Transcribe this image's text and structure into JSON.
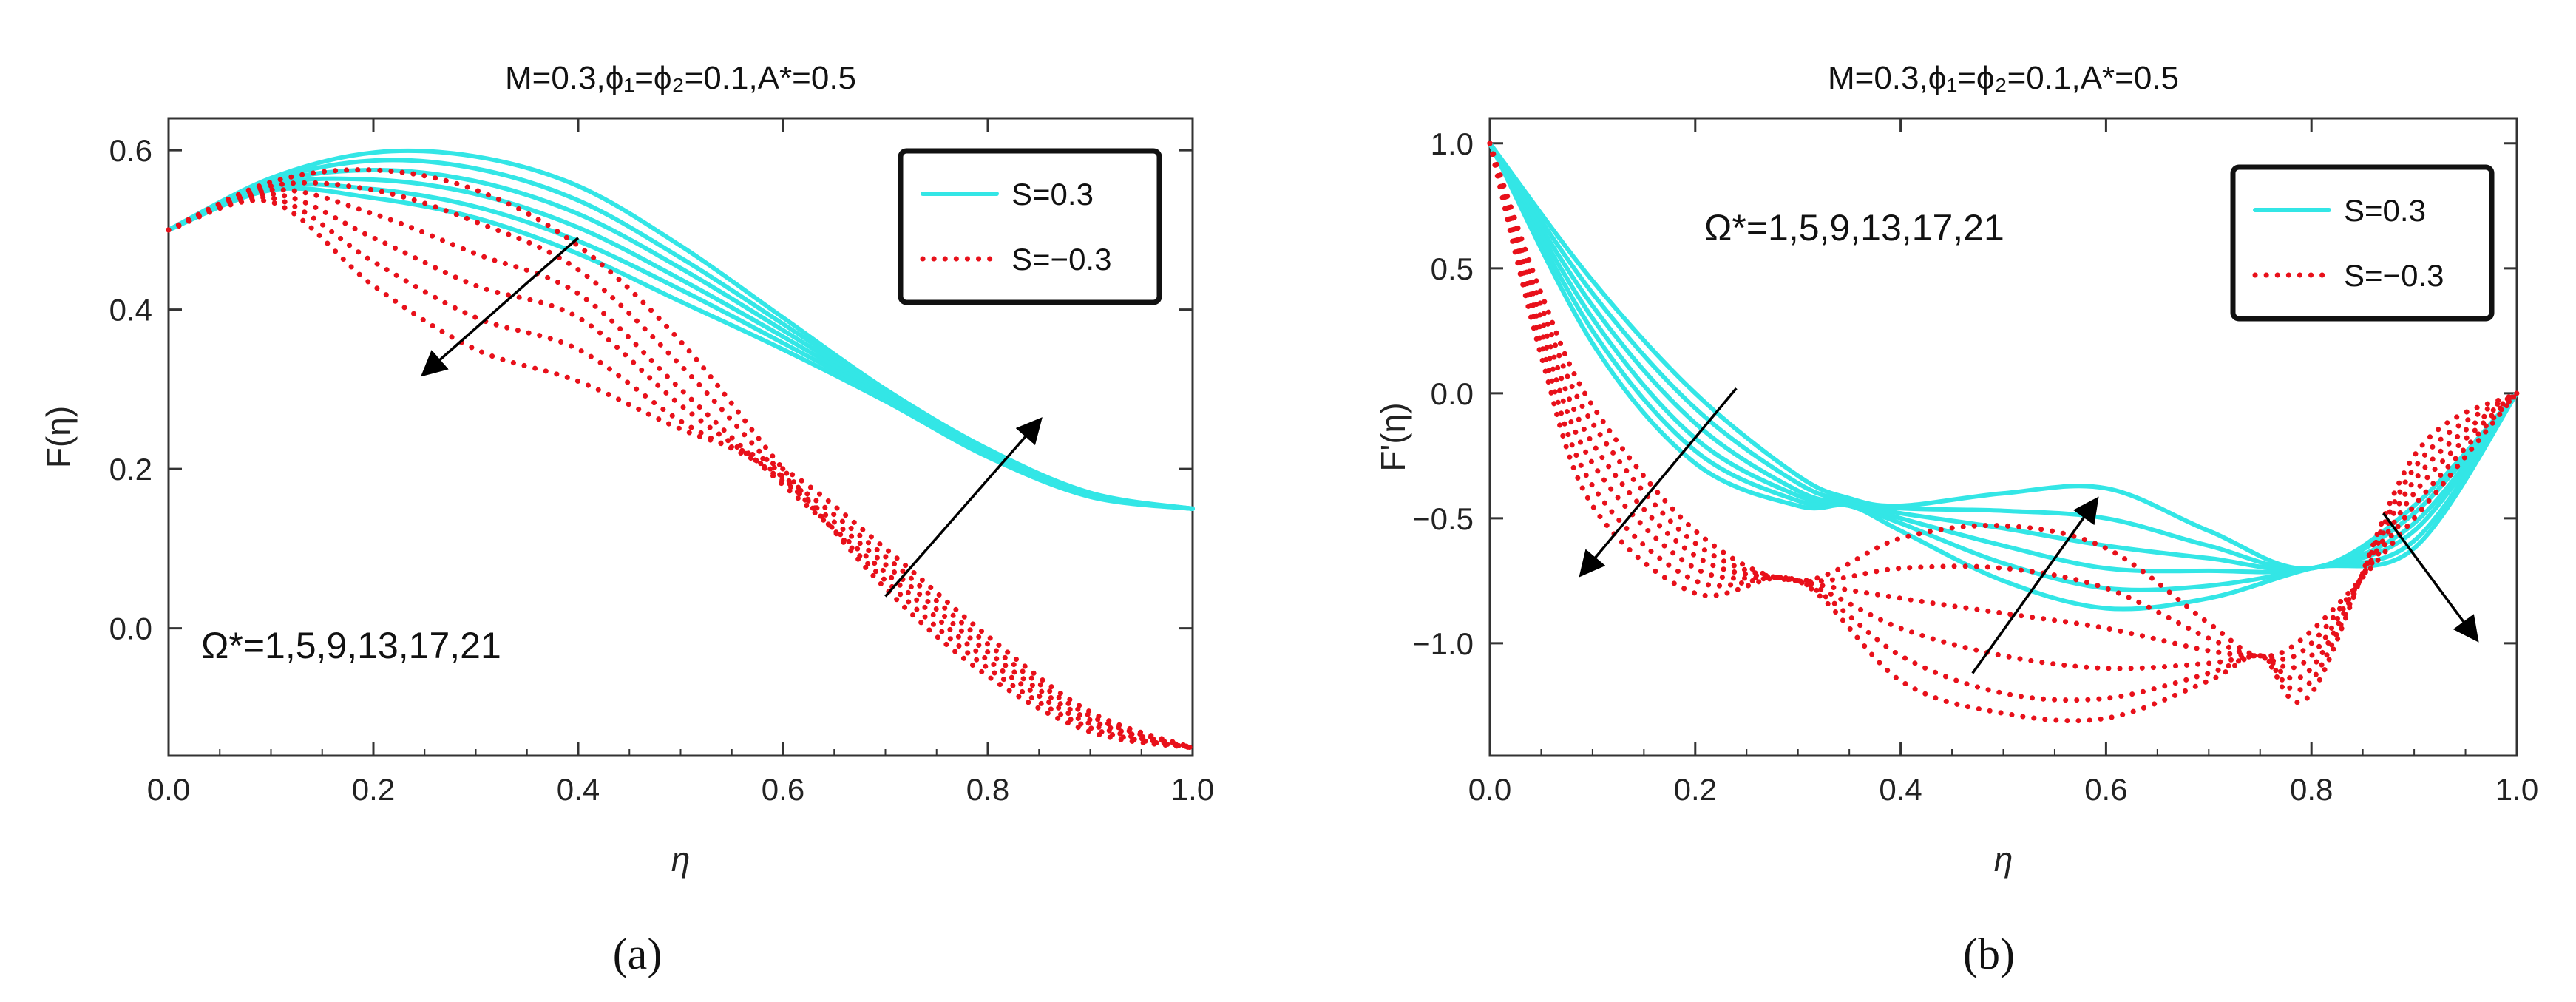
{
  "colors": {
    "series_pos": "#33E6E6",
    "series_neg": "#E8101A",
    "frame": "#333333",
    "arrow": "#000000"
  },
  "chart_data": [
    {
      "type": "line",
      "panel_label": "(a)",
      "title": "M=0.3,ϕ₁=ϕ₂=0.1,A*=0.5",
      "xlabel": "η",
      "ylabel": "F(η)",
      "xlim": [
        0,
        1
      ],
      "ylim": [
        -0.16,
        0.64
      ],
      "xticks": [
        "0.0",
        "0.2",
        "0.4",
        "0.6",
        "0.8",
        "1.0"
      ],
      "yticks": [
        "0.0",
        "0.2",
        "0.4",
        "0.6"
      ],
      "ytick_values": [
        0,
        0.2,
        0.4,
        0.6
      ],
      "legend": {
        "position": "top-right",
        "entries": [
          "S=0.3",
          "S=−0.3"
        ]
      },
      "annotation": "Ω*=1,5,9,13,17,21",
      "arrows": [
        {
          "from": [
            0.4,
            0.49
          ],
          "to": [
            0.25,
            0.32
          ]
        },
        {
          "from": [
            0.7,
            0.04
          ],
          "to": [
            0.85,
            0.26
          ]
        }
      ],
      "series_groups": [
        {
          "name": "S=0.3",
          "style": "solid",
          "color_key": "series_pos",
          "curves": [
            {
              "x": [
                0,
                0.1,
                0.2,
                0.3,
                0.4,
                0.5,
                0.6,
                0.7,
                0.8,
                0.9,
                1.0
              ],
              "y": [
                0.5,
                0.565,
                0.597,
                0.592,
                0.555,
                0.48,
                0.39,
                0.3,
                0.225,
                0.17,
                0.15
              ]
            },
            {
              "x": [
                0,
                0.1,
                0.2,
                0.3,
                0.4,
                0.5,
                0.6,
                0.7,
                0.8,
                0.9,
                1.0
              ],
              "y": [
                0.5,
                0.562,
                0.587,
                0.577,
                0.537,
                0.465,
                0.382,
                0.298,
                0.223,
                0.169,
                0.15
              ]
            },
            {
              "x": [
                0,
                0.1,
                0.2,
                0.3,
                0.4,
                0.5,
                0.6,
                0.7,
                0.8,
                0.9,
                1.0
              ],
              "y": [
                0.5,
                0.559,
                0.575,
                0.561,
                0.52,
                0.452,
                0.374,
                0.295,
                0.221,
                0.168,
                0.15
              ]
            },
            {
              "x": [
                0,
                0.1,
                0.2,
                0.3,
                0.4,
                0.5,
                0.6,
                0.7,
                0.8,
                0.9,
                1.0
              ],
              "y": [
                0.5,
                0.556,
                0.563,
                0.545,
                0.503,
                0.438,
                0.366,
                0.292,
                0.219,
                0.167,
                0.15
              ]
            },
            {
              "x": [
                0,
                0.1,
                0.2,
                0.3,
                0.4,
                0.5,
                0.6,
                0.7,
                0.8,
                0.9,
                1.0
              ],
              "y": [
                0.5,
                0.553,
                0.551,
                0.529,
                0.486,
                0.425,
                0.358,
                0.289,
                0.217,
                0.166,
                0.15
              ]
            },
            {
              "x": [
                0,
                0.1,
                0.2,
                0.3,
                0.4,
                0.5,
                0.6,
                0.7,
                0.8,
                0.9,
                1.0
              ],
              "y": [
                0.5,
                0.55,
                0.54,
                0.515,
                0.47,
                0.41,
                0.35,
                0.285,
                0.215,
                0.165,
                0.15
              ]
            }
          ]
        },
        {
          "name": "S=−0.3",
          "style": "dotted",
          "color_key": "series_neg",
          "curves": [
            {
              "x": [
                0,
                0.1,
                0.2,
                0.3,
                0.4,
                0.5,
                0.6,
                0.7,
                0.8,
                0.9,
                1.0
              ],
              "y": [
                0.5,
                0.56,
                0.575,
                0.55,
                0.48,
                0.36,
                0.2,
                0.05,
                -0.06,
                -0.13,
                -0.15
              ]
            },
            {
              "x": [
                0,
                0.1,
                0.2,
                0.3,
                0.4,
                0.5,
                0.6,
                0.7,
                0.8,
                0.9,
                1.0
              ],
              "y": [
                0.5,
                0.555,
                0.55,
                0.51,
                0.45,
                0.33,
                0.19,
                0.06,
                -0.05,
                -0.125,
                -0.15
              ]
            },
            {
              "x": [
                0,
                0.1,
                0.2,
                0.3,
                0.4,
                0.5,
                0.6,
                0.7,
                0.8,
                0.9,
                1.0
              ],
              "y": [
                0.5,
                0.55,
                0.52,
                0.47,
                0.42,
                0.3,
                0.18,
                0.07,
                -0.04,
                -0.12,
                -0.15
              ]
            },
            {
              "x": [
                0,
                0.1,
                0.2,
                0.3,
                0.4,
                0.5,
                0.6,
                0.7,
                0.8,
                0.9,
                1.0
              ],
              "y": [
                0.5,
                0.545,
                0.49,
                0.43,
                0.39,
                0.28,
                0.185,
                0.08,
                -0.03,
                -0.115,
                -0.15
              ]
            },
            {
              "x": [
                0,
                0.1,
                0.2,
                0.3,
                0.4,
                0.5,
                0.6,
                0.7,
                0.8,
                0.9,
                1.0
              ],
              "y": [
                0.5,
                0.54,
                0.46,
                0.39,
                0.35,
                0.26,
                0.19,
                0.09,
                -0.02,
                -0.11,
                -0.15
              ]
            },
            {
              "x": [
                0,
                0.1,
                0.2,
                0.3,
                0.4,
                0.5,
                0.6,
                0.7,
                0.8,
                0.9,
                1.0
              ],
              "y": [
                0.5,
                0.535,
                0.43,
                0.35,
                0.31,
                0.25,
                0.2,
                0.1,
                -0.01,
                -0.105,
                -0.15
              ]
            }
          ]
        }
      ]
    },
    {
      "type": "line",
      "panel_label": "(b)",
      "title": "M=0.3,ϕ₁=ϕ₂=0.1,A*=0.5",
      "xlabel": "η",
      "ylabel": "F'(η)",
      "xlim": [
        0,
        1
      ],
      "ylim": [
        -1.45,
        1.1
      ],
      "xticks": [
        "0.0",
        "0.2",
        "0.4",
        "0.6",
        "0.8",
        "1.0"
      ],
      "yticks": [
        "1.0",
        "0.5",
        "0.0",
        "−0.5",
        "−1.0"
      ],
      "ytick_values": [
        1.0,
        0.5,
        0.0,
        -0.5,
        -1.0
      ],
      "legend": {
        "position": "top-right",
        "entries": [
          "S=0.3",
          "S=−0.3"
        ]
      },
      "annotation": "Ω*=1,5,9,13,17,21",
      "arrows": [
        {
          "from": [
            0.24,
            0.02
          ],
          "to": [
            0.09,
            -0.72
          ]
        },
        {
          "from": [
            0.47,
            -1.12
          ],
          "to": [
            0.59,
            -0.43
          ]
        },
        {
          "from": [
            0.87,
            -0.48
          ],
          "to": [
            0.96,
            -0.98
          ]
        }
      ],
      "series_groups": [
        {
          "name": "S=0.3",
          "style": "solid",
          "color_key": "series_pos",
          "curves": [
            {
              "x": [
                0,
                0.1,
                0.2,
                0.3,
                0.35,
                0.4,
                0.5,
                0.6,
                0.7,
                0.8,
                0.9,
                1.0
              ],
              "y": [
                1.0,
                0.45,
                0.0,
                -0.33,
                -0.42,
                -0.45,
                -0.4,
                -0.38,
                -0.55,
                -0.7,
                -0.45,
                0.0
              ]
            },
            {
              "x": [
                0,
                0.1,
                0.2,
                0.3,
                0.35,
                0.4,
                0.5,
                0.6,
                0.7,
                0.8,
                0.9,
                1.0
              ],
              "y": [
                1.0,
                0.4,
                -0.06,
                -0.36,
                -0.43,
                -0.46,
                -0.47,
                -0.5,
                -0.61,
                -0.7,
                -0.48,
                0.0
              ]
            },
            {
              "x": [
                0,
                0.1,
                0.2,
                0.3,
                0.35,
                0.4,
                0.5,
                0.6,
                0.7,
                0.8,
                0.9,
                1.0
              ],
              "y": [
                1.0,
                0.35,
                -0.12,
                -0.39,
                -0.44,
                -0.48,
                -0.54,
                -0.61,
                -0.66,
                -0.7,
                -0.52,
                0.0
              ]
            },
            {
              "x": [
                0,
                0.1,
                0.2,
                0.3,
                0.35,
                0.4,
                0.5,
                0.6,
                0.7,
                0.8,
                0.9,
                1.0
              ],
              "y": [
                1.0,
                0.3,
                -0.18,
                -0.41,
                -0.44,
                -0.5,
                -0.61,
                -0.7,
                -0.71,
                -0.7,
                -0.55,
                0.0
              ]
            },
            {
              "x": [
                0,
                0.1,
                0.2,
                0.3,
                0.35,
                0.4,
                0.5,
                0.6,
                0.7,
                0.8,
                0.9,
                1.0
              ],
              "y": [
                1.0,
                0.25,
                -0.23,
                -0.43,
                -0.45,
                -0.52,
                -0.68,
                -0.78,
                -0.77,
                -0.7,
                -0.59,
                0.0
              ]
            },
            {
              "x": [
                0,
                0.1,
                0.2,
                0.3,
                0.35,
                0.4,
                0.5,
                0.6,
                0.7,
                0.8,
                0.9,
                1.0
              ],
              "y": [
                1.0,
                0.2,
                -0.28,
                -0.45,
                -0.45,
                -0.55,
                -0.75,
                -0.86,
                -0.82,
                -0.7,
                -0.62,
                0.0
              ]
            }
          ]
        },
        {
          "name": "S=−0.3",
          "style": "dotted",
          "color_key": "series_neg",
          "curves": [
            {
              "x": [
                0,
                0.05,
                0.1,
                0.2,
                0.3,
                0.4,
                0.5,
                0.6,
                0.7,
                0.75,
                0.8,
                0.9,
                1.0
              ],
              "y": [
                1.0,
                0.4,
                -0.05,
                -0.55,
                -0.75,
                -0.58,
                -0.53,
                -0.62,
                -0.92,
                -1.05,
                -0.95,
                -0.5,
                0.0
              ]
            },
            {
              "x": [
                0,
                0.05,
                0.1,
                0.2,
                0.3,
                0.4,
                0.5,
                0.6,
                0.7,
                0.75,
                0.8,
                0.9,
                1.0
              ],
              "y": [
                1.0,
                0.35,
                -0.12,
                -0.6,
                -0.75,
                -0.7,
                -0.7,
                -0.78,
                -0.98,
                -1.05,
                -1.0,
                -0.45,
                0.0
              ]
            },
            {
              "x": [
                0,
                0.05,
                0.1,
                0.2,
                0.3,
                0.4,
                0.5,
                0.6,
                0.7,
                0.75,
                0.8,
                0.9,
                1.0
              ],
              "y": [
                1.0,
                0.3,
                -0.2,
                -0.65,
                -0.75,
                -0.82,
                -0.88,
                -0.94,
                -1.03,
                -1.05,
                -1.05,
                -0.4,
                0.0
              ]
            },
            {
              "x": [
                0,
                0.05,
                0.1,
                0.2,
                0.3,
                0.4,
                0.5,
                0.6,
                0.7,
                0.75,
                0.8,
                0.9,
                1.0
              ],
              "y": [
                1.0,
                0.25,
                -0.28,
                -0.7,
                -0.75,
                -0.94,
                -1.05,
                -1.1,
                -1.08,
                -1.05,
                -1.1,
                -0.35,
                0.0
              ]
            },
            {
              "x": [
                0,
                0.05,
                0.1,
                0.2,
                0.3,
                0.4,
                0.5,
                0.6,
                0.7,
                0.75,
                0.8,
                0.9,
                1.0
              ],
              "y": [
                1.0,
                0.2,
                -0.37,
                -0.75,
                -0.75,
                -1.05,
                -1.2,
                -1.22,
                -1.12,
                -1.05,
                -1.15,
                -0.3,
                0.0
              ]
            },
            {
              "x": [
                0,
                0.05,
                0.1,
                0.2,
                0.3,
                0.4,
                0.5,
                0.6,
                0.7,
                0.75,
                0.8,
                0.9,
                1.0
              ],
              "y": [
                1.0,
                0.15,
                -0.45,
                -0.8,
                -0.75,
                -1.15,
                -1.28,
                -1.3,
                -1.15,
                -1.05,
                -1.2,
                -0.25,
                0.0
              ]
            }
          ]
        }
      ]
    }
  ]
}
